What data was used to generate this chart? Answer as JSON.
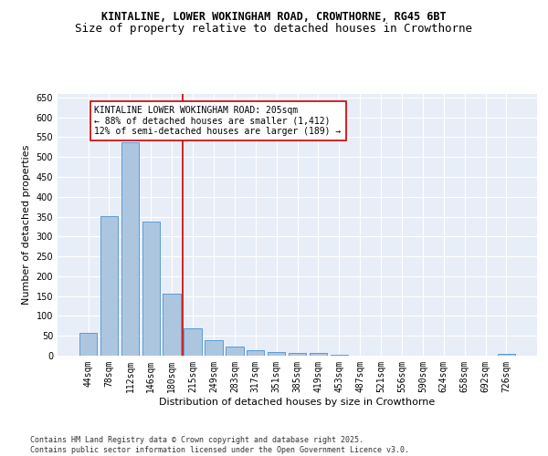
{
  "title1": "KINTALINE, LOWER WOKINGHAM ROAD, CROWTHORNE, RG45 6BT",
  "title2": "Size of property relative to detached houses in Crowthorne",
  "xlabel": "Distribution of detached houses by size in Crowthorne",
  "ylabel": "Number of detached properties",
  "categories": [
    "44sqm",
    "78sqm",
    "112sqm",
    "146sqm",
    "180sqm",
    "215sqm",
    "249sqm",
    "283sqm",
    "317sqm",
    "351sqm",
    "385sqm",
    "419sqm",
    "453sqm",
    "487sqm",
    "521sqm",
    "556sqm",
    "590sqm",
    "624sqm",
    "658sqm",
    "692sqm",
    "726sqm"
  ],
  "values": [
    58,
    352,
    537,
    337,
    157,
    68,
    40,
    22,
    14,
    10,
    8,
    8,
    2,
    0,
    0,
    1,
    0,
    0,
    0,
    0,
    5
  ],
  "bar_color": "#adc6e0",
  "bar_edge_color": "#5b9bd5",
  "vline_x": 4.5,
  "vline_color": "#cc0000",
  "annotation_text": "KINTALINE LOWER WOKINGHAM ROAD: 205sqm\n← 88% of detached houses are smaller (1,412)\n12% of semi-detached houses are larger (189) →",
  "annotation_box_color": "#ffffff",
  "annotation_box_edge": "#cc0000",
  "ylim": [
    0,
    660
  ],
  "yticks": [
    0,
    50,
    100,
    150,
    200,
    250,
    300,
    350,
    400,
    450,
    500,
    550,
    600,
    650
  ],
  "bg_color": "#e8eef7",
  "grid_color": "#ffffff",
  "footer_text": "Contains HM Land Registry data © Crown copyright and database right 2025.\nContains public sector information licensed under the Open Government Licence v3.0.",
  "title1_fontsize": 8.5,
  "title2_fontsize": 9,
  "xlabel_fontsize": 8,
  "ylabel_fontsize": 8,
  "tick_fontsize": 7,
  "annotation_fontsize": 7,
  "footer_fontsize": 6
}
